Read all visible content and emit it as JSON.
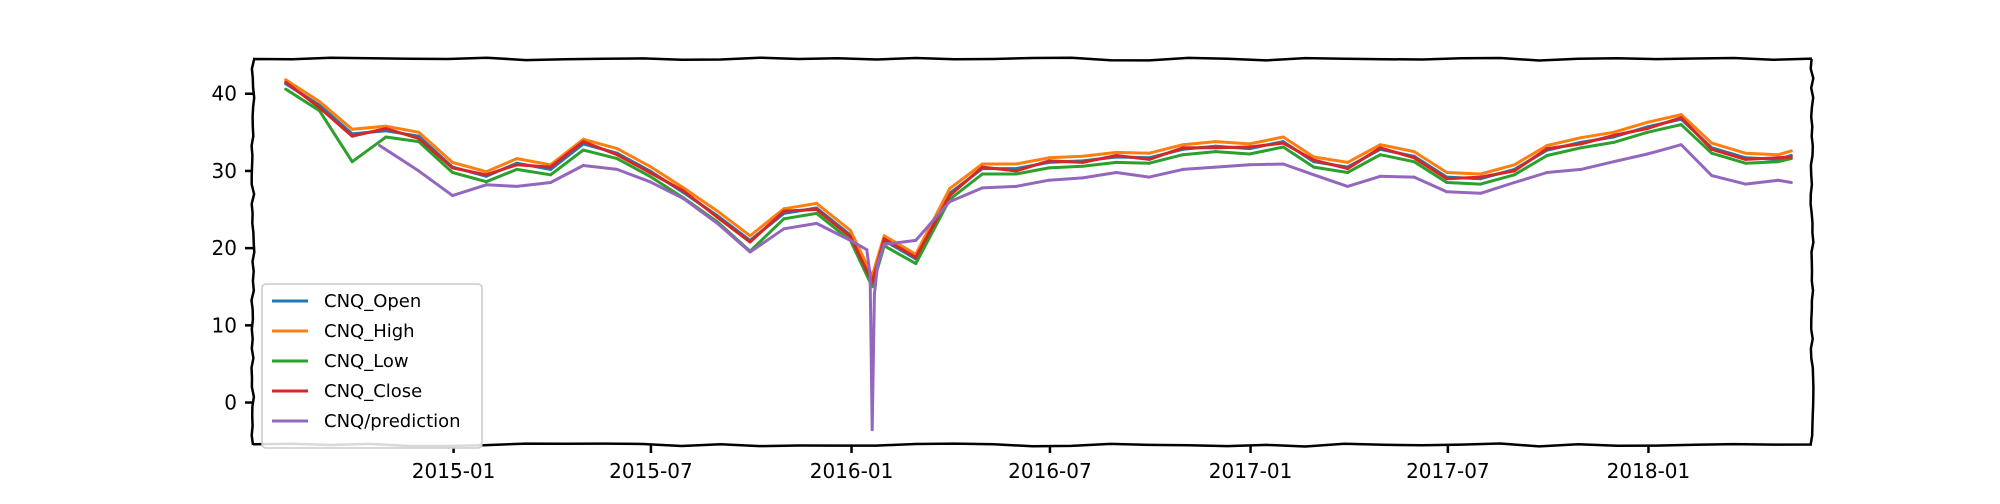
{
  "chart_data": {
    "type": "line",
    "title": "",
    "xlabel": "",
    "ylabel": "",
    "x_range": [
      "2014-07-01",
      "2018-05-31"
    ],
    "ylim": [
      -5.5,
      44.5
    ],
    "y_ticks": [
      0,
      10,
      20,
      30,
      40
    ],
    "x_ticks": [
      "2015-01",
      "2015-07",
      "2016-01",
      "2016-07",
      "2017-01",
      "2017-07",
      "2018-01"
    ],
    "grid": false,
    "legend_position": "lower-left",
    "style": "xkcd",
    "series": [
      {
        "name": "CNQ_Open",
        "color": "#1f77b4",
        "x": [
          "2014-07-31",
          "2014-08-31",
          "2014-09-30",
          "2014-10-31",
          "2014-11-30",
          "2014-12-31",
          "2015-01-31",
          "2015-02-28",
          "2015-03-31",
          "2015-04-30",
          "2015-05-31",
          "2015-06-30",
          "2015-07-31",
          "2015-08-31",
          "2015-09-30",
          "2015-10-31",
          "2015-11-30",
          "2015-12-31",
          "2016-01-20",
          "2016-01-31",
          "2016-02-29",
          "2016-03-31",
          "2016-04-30",
          "2016-05-31",
          "2016-06-30",
          "2016-07-31",
          "2016-08-31",
          "2016-09-30",
          "2016-10-31",
          "2016-11-30",
          "2016-12-31",
          "2017-01-31",
          "2017-02-28",
          "2017-03-31",
          "2017-04-30",
          "2017-05-31",
          "2017-06-30",
          "2017-07-31",
          "2017-08-31",
          "2017-09-30",
          "2017-10-31",
          "2017-11-30",
          "2017-12-31",
          "2018-01-31",
          "2018-02-28",
          "2018-03-31",
          "2018-04-30",
          "2018-05-12"
        ],
        "values": [
          41.3,
          38.5,
          34.8,
          35.2,
          34.5,
          30.5,
          29.3,
          31,
          30.2,
          33.5,
          32.3,
          30,
          27.2,
          24.2,
          21,
          24.5,
          25.2,
          21.7,
          15.8,
          21,
          18.6,
          27.1,
          30.3,
          30.3,
          31.1,
          31.3,
          31.8,
          31.7,
          32.8,
          33.2,
          32.9,
          33.8,
          31.2,
          30.5,
          32.8,
          31.9,
          29.2,
          29,
          30.2,
          32.7,
          33.7,
          34.4,
          35.7,
          36.7,
          33,
          31.7,
          31.5,
          32
        ]
      },
      {
        "name": "CNQ_High",
        "color": "#ff7f0e",
        "x": [
          "2014-07-31",
          "2014-08-31",
          "2014-09-30",
          "2014-10-31",
          "2014-11-30",
          "2014-12-31",
          "2015-01-31",
          "2015-02-28",
          "2015-03-31",
          "2015-04-30",
          "2015-05-31",
          "2015-06-30",
          "2015-07-31",
          "2015-08-31",
          "2015-09-30",
          "2015-10-31",
          "2015-11-30",
          "2015-12-31",
          "2016-01-20",
          "2016-01-31",
          "2016-02-29",
          "2016-03-31",
          "2016-04-30",
          "2016-05-31",
          "2016-06-30",
          "2016-07-31",
          "2016-08-31",
          "2016-09-30",
          "2016-10-31",
          "2016-11-30",
          "2016-12-31",
          "2017-01-31",
          "2017-02-28",
          "2017-03-31",
          "2017-04-30",
          "2017-05-31",
          "2017-06-30",
          "2017-07-31",
          "2017-08-31",
          "2017-09-30",
          "2017-10-31",
          "2017-11-30",
          "2017-12-31",
          "2018-01-31",
          "2018-02-28",
          "2018-03-31",
          "2018-04-30",
          "2018-05-12"
        ],
        "values": [
          41.8,
          39,
          35.4,
          35.8,
          35,
          31.1,
          29.9,
          31.6,
          30.8,
          34.1,
          32.9,
          30.6,
          27.8,
          24.8,
          21.6,
          25.1,
          25.8,
          22.3,
          16.4,
          21.6,
          19.2,
          27.7,
          30.9,
          30.9,
          31.7,
          31.9,
          32.4,
          32.3,
          33.4,
          33.8,
          33.5,
          34.4,
          31.8,
          31.1,
          33.4,
          32.5,
          29.8,
          29.6,
          30.8,
          33.3,
          34.3,
          35,
          36.3,
          37.3,
          33.6,
          32.3,
          32.1,
          32.6
        ]
      },
      {
        "name": "CNQ_Low",
        "color": "#2ca02c",
        "x": [
          "2014-07-31",
          "2014-08-31",
          "2014-09-30",
          "2014-10-31",
          "2014-11-30",
          "2014-12-31",
          "2015-01-31",
          "2015-02-28",
          "2015-03-31",
          "2015-04-30",
          "2015-05-31",
          "2015-06-30",
          "2015-07-31",
          "2015-08-31",
          "2015-09-30",
          "2015-10-31",
          "2015-11-30",
          "2015-12-31",
          "2016-01-20",
          "2016-01-31",
          "2016-02-29",
          "2016-03-31",
          "2016-04-30",
          "2016-05-31",
          "2016-06-30",
          "2016-07-31",
          "2016-08-31",
          "2016-09-30",
          "2016-10-31",
          "2016-11-30",
          "2016-12-31",
          "2017-01-31",
          "2017-02-28",
          "2017-03-31",
          "2017-04-30",
          "2017-05-31",
          "2017-06-30",
          "2017-07-31",
          "2017-08-31",
          "2017-09-30",
          "2017-10-31",
          "2017-11-30",
          "2017-12-31",
          "2018-01-31",
          "2018-02-28",
          "2018-03-31",
          "2018-04-30",
          "2018-05-12"
        ],
        "values": [
          40.6,
          37.8,
          31.2,
          34.4,
          33.8,
          29.8,
          28.6,
          30.2,
          29.5,
          32.7,
          31.6,
          29.3,
          26.5,
          23.4,
          19.6,
          23.8,
          24.5,
          21,
          15,
          20.3,
          18,
          26.3,
          29.6,
          29.6,
          30.4,
          30.6,
          31.1,
          31,
          32.1,
          32.5,
          32.2,
          33.1,
          30.5,
          29.8,
          32.1,
          31.2,
          28.5,
          28.3,
          29.5,
          32,
          33,
          33.7,
          35,
          36,
          32.3,
          31,
          31.2,
          31.6
        ]
      },
      {
        "name": "CNQ_Close",
        "color": "#d62728",
        "x": [
          "2014-07-31",
          "2014-08-31",
          "2014-09-30",
          "2014-10-31",
          "2014-11-30",
          "2014-12-31",
          "2015-01-31",
          "2015-02-28",
          "2015-03-31",
          "2015-04-30",
          "2015-05-31",
          "2015-06-30",
          "2015-07-31",
          "2015-08-31",
          "2015-09-30",
          "2015-10-31",
          "2015-11-30",
          "2015-12-31",
          "2016-01-20",
          "2016-01-31",
          "2016-02-29",
          "2016-03-31",
          "2016-04-30",
          "2016-05-31",
          "2016-06-30",
          "2016-07-31",
          "2016-08-31",
          "2016-09-30",
          "2016-10-31",
          "2016-11-30",
          "2016-12-31",
          "2017-01-31",
          "2017-02-28",
          "2017-03-31",
          "2017-04-30",
          "2017-05-31",
          "2017-06-30",
          "2017-07-31",
          "2017-08-31",
          "2017-09-30",
          "2017-10-31",
          "2017-11-30",
          "2017-12-31",
          "2018-01-31",
          "2018-02-28",
          "2018-03-31",
          "2018-04-30",
          "2018-05-12"
        ],
        "values": [
          41.5,
          38.2,
          34.5,
          35.5,
          34.2,
          30.4,
          29.5,
          30.8,
          30.5,
          33.8,
          32.1,
          29.8,
          27.4,
          24,
          20.8,
          24.8,
          25,
          21.5,
          15.6,
          21.2,
          18.8,
          26.8,
          30.5,
          30,
          31.3,
          31.1,
          32,
          31.5,
          33,
          33,
          33.1,
          33.6,
          31.4,
          30.3,
          33,
          31.7,
          29,
          29.2,
          30,
          32.9,
          33.5,
          34.6,
          35.5,
          36.9,
          32.8,
          31.5,
          31.7,
          31.8
        ]
      },
      {
        "name": "CNQ/prediction",
        "color": "#9467bd",
        "x": [
          "2014-10-25",
          "2014-11-30",
          "2014-12-31",
          "2015-01-31",
          "2015-02-28",
          "2015-03-31",
          "2015-04-30",
          "2015-05-31",
          "2015-06-30",
          "2015-07-31",
          "2015-08-31",
          "2015-09-30",
          "2015-10-31",
          "2015-11-30",
          "2015-12-31",
          "2016-01-15",
          "2016-01-18",
          "2016-01-20",
          "2016-01-22",
          "2016-01-25",
          "2016-01-31",
          "2016-02-29",
          "2016-03-31",
          "2016-04-30",
          "2016-05-31",
          "2016-06-30",
          "2016-07-31",
          "2016-08-31",
          "2016-09-30",
          "2016-10-31",
          "2016-11-30",
          "2016-12-31",
          "2017-01-31",
          "2017-02-28",
          "2017-03-31",
          "2017-04-30",
          "2017-05-31",
          "2017-06-30",
          "2017-07-31",
          "2017-08-31",
          "2017-09-30",
          "2017-10-31",
          "2017-11-30",
          "2017-12-31",
          "2018-01-31",
          "2018-02-28",
          "2018-03-31",
          "2018-04-30",
          "2018-05-12"
        ],
        "values": [
          33.3,
          30,
          26.8,
          28.2,
          28,
          28.5,
          30.7,
          30.2,
          28.6,
          26.4,
          23.2,
          19.5,
          22.5,
          23.2,
          21,
          19.8,
          16.5,
          -3.5,
          14,
          18,
          20.5,
          21,
          26,
          27.8,
          28,
          28.8,
          29.1,
          29.8,
          29.2,
          30.2,
          30.5,
          30.8,
          30.9,
          29.5,
          28,
          29.3,
          29.2,
          27.3,
          27.1,
          28.5,
          29.8,
          30.2,
          31.2,
          32.2,
          33.4,
          29.4,
          28.3,
          28.8,
          28.5
        ]
      }
    ]
  }
}
